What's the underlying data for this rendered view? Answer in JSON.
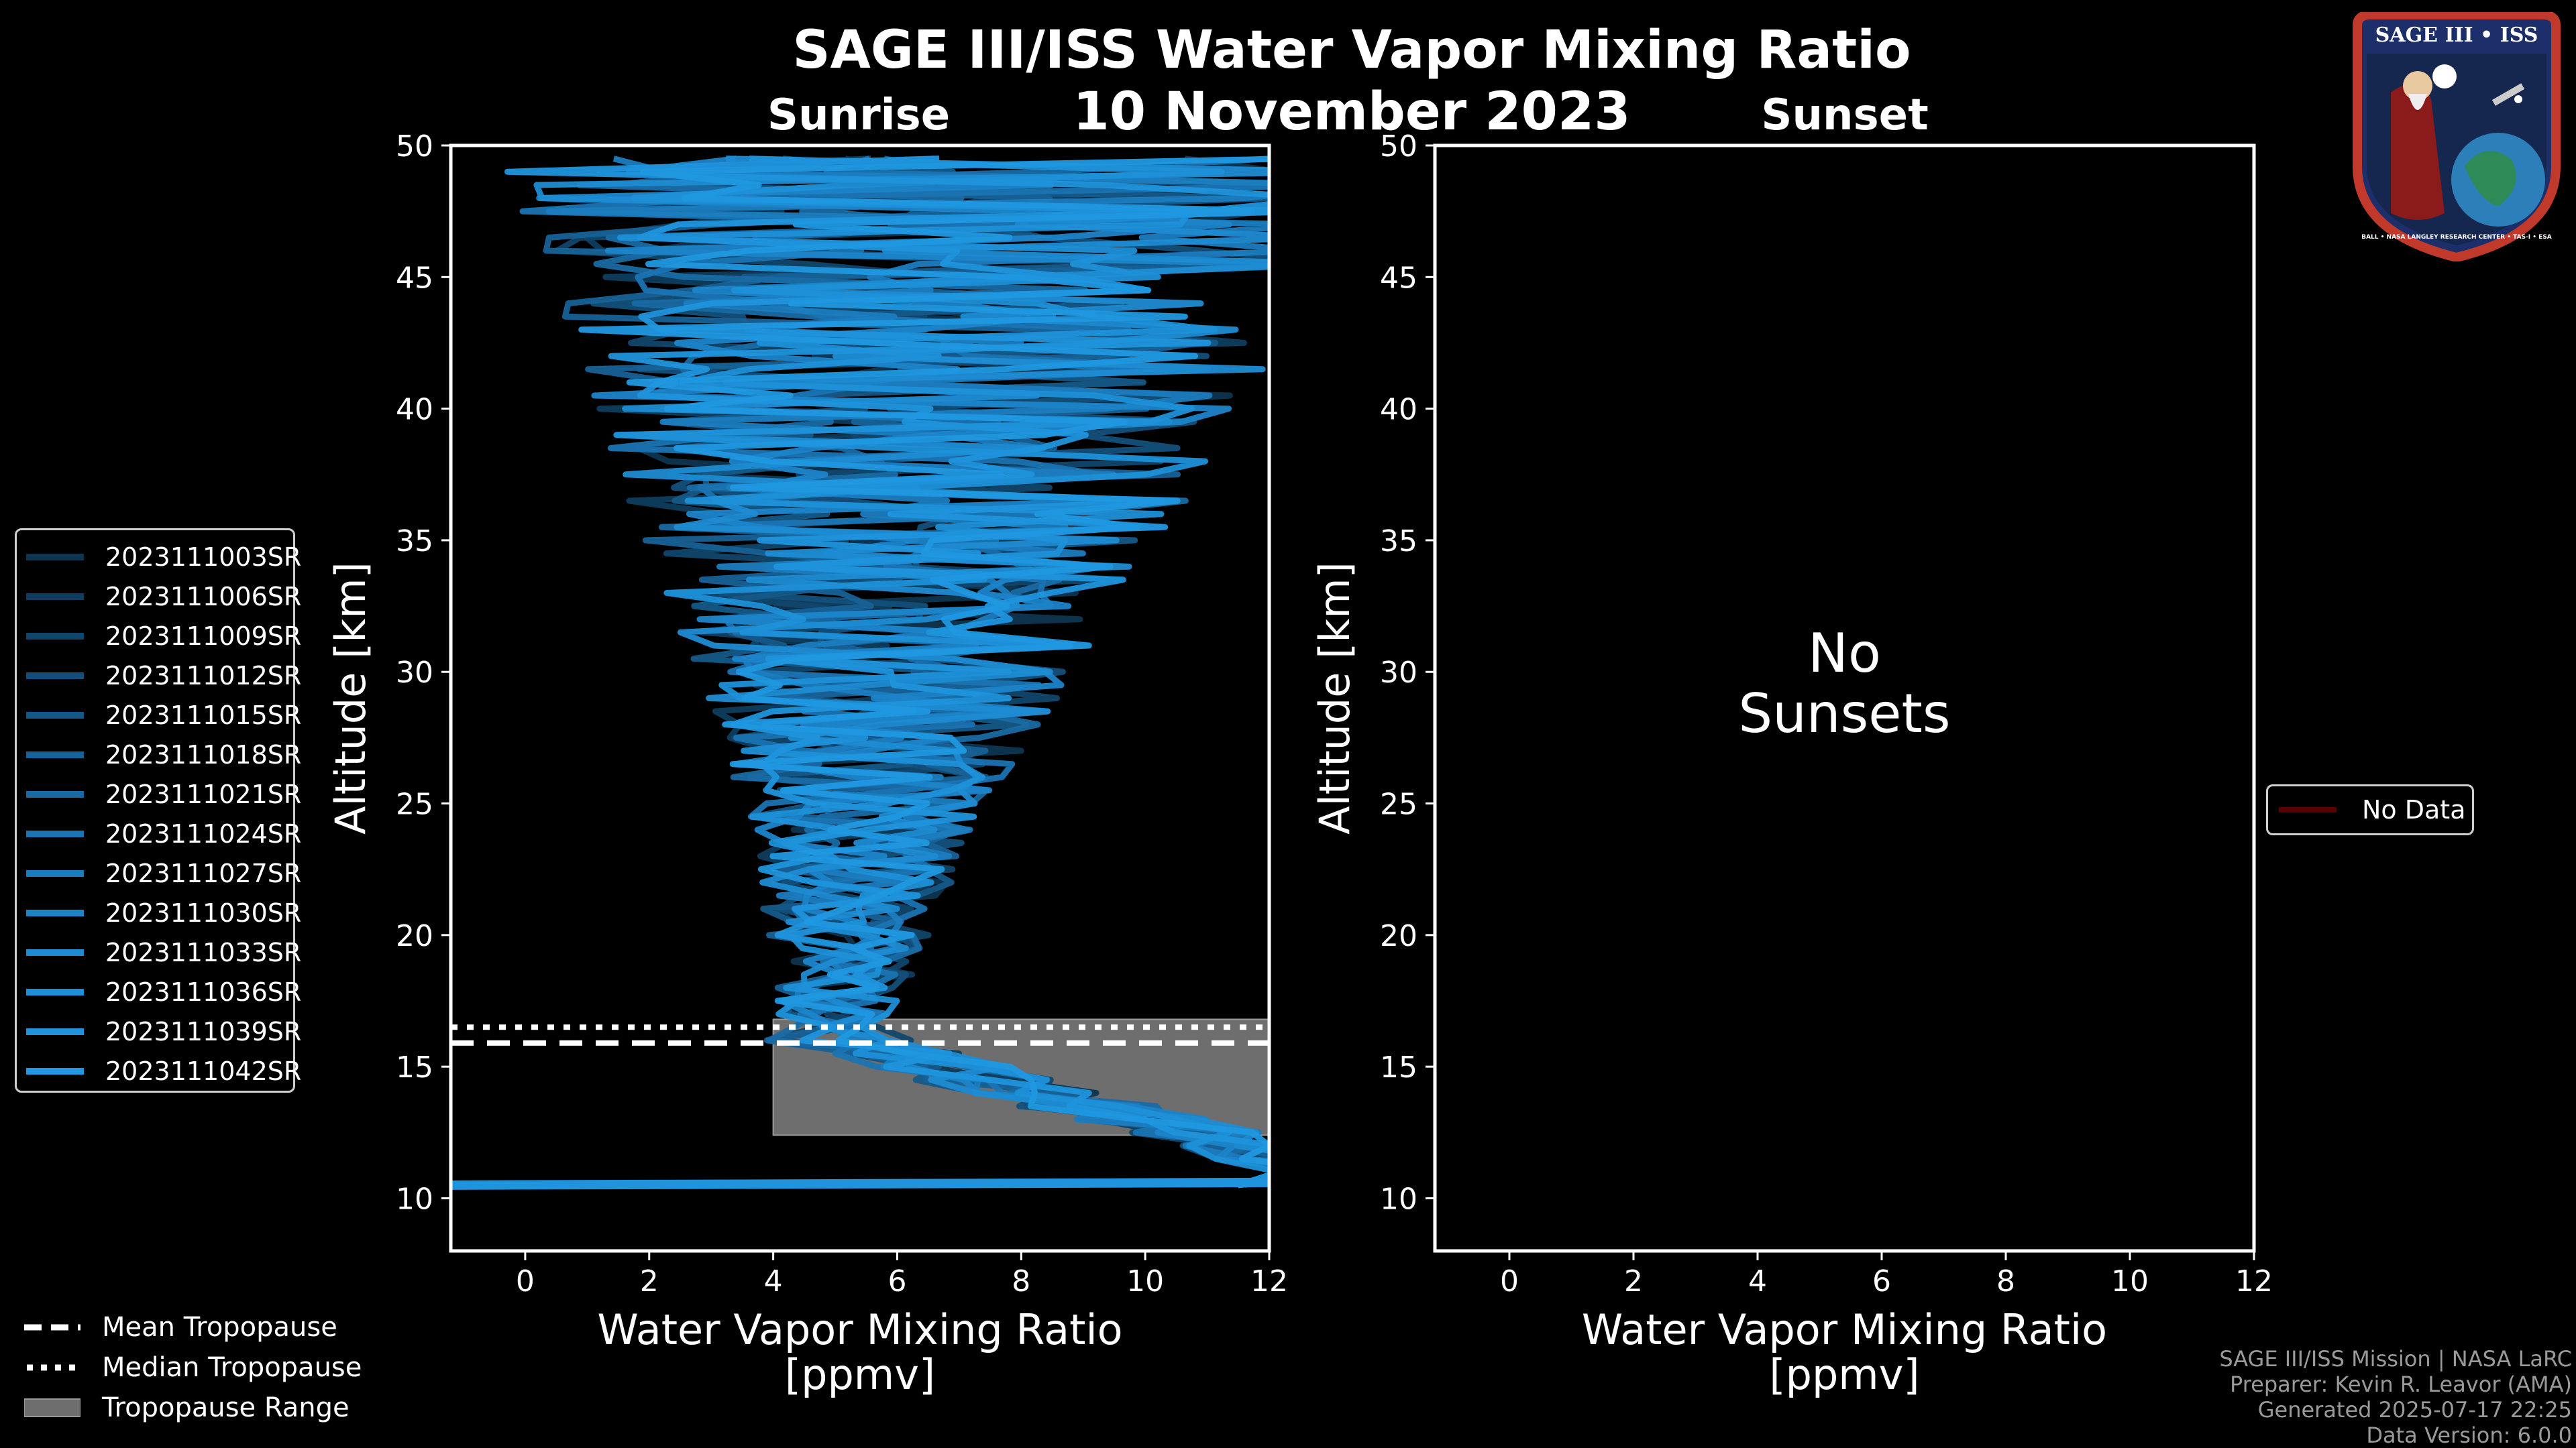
{
  "title": "SAGE III/ISS Water Vapor Mixing Ratio",
  "date": "10 November 2023",
  "sunrise_label": "Sunrise",
  "sunset_label": "Sunset",
  "chart_data": [
    {
      "type": "line",
      "panel": "Sunrise",
      "xlabel": "Water Vapor Mixing Ratio\n[ppmv]",
      "xlabel_line1": "Water Vapor Mixing Ratio",
      "xlabel_line2": "[ppmv]",
      "ylabel": "Altitude [km]",
      "xlim": [
        -1.2,
        12
      ],
      "ylim": [
        8,
        50
      ],
      "xticks": [
        0,
        2,
        4,
        6,
        8,
        10,
        12
      ],
      "yticks": [
        10,
        15,
        20,
        25,
        30,
        35,
        40,
        45,
        50
      ],
      "series_names": [
        "2023111003SR",
        "2023111006SR",
        "2023111009SR",
        "2023111012SR",
        "2023111015SR",
        "2023111018SR",
        "2023111021SR",
        "2023111024SR",
        "2023111027SR",
        "2023111030SR",
        "2023111033SR",
        "2023111036SR",
        "2023111039SR",
        "2023111042SR"
      ],
      "series_colors": [
        "#0d3550",
        "#0f3d5e",
        "#11466c",
        "#134f7a",
        "#155888",
        "#176196",
        "#196aa4",
        "#1a73b2",
        "#1b7cbf",
        "#1c84c9",
        "#1d8bd2",
        "#1e90d8",
        "#1f94dc",
        "#2098e0"
      ],
      "mean_tropopause_km": 15.9,
      "median_tropopause_km": 16.5,
      "tropopause_range_km": [
        12.4,
        16.8
      ]
    },
    {
      "type": "line",
      "panel": "Sunset",
      "xlabel_line1": "Water Vapor Mixing Ratio",
      "xlabel_line2": "[ppmv]",
      "ylabel": "Altitude [km]",
      "xlim": [
        -1.2,
        12
      ],
      "ylim": [
        8,
        50
      ],
      "xticks": [
        0,
        2,
        4,
        6,
        8,
        10,
        12
      ],
      "yticks": [
        10,
        15,
        20,
        25,
        30,
        35,
        40,
        45,
        50
      ],
      "annotation_line1": "No",
      "annotation_line2": "Sunsets",
      "series_names": [
        "No Data"
      ]
    }
  ],
  "legend_trop": [
    "Mean Tropopause",
    "Median Tropopause",
    "Tropopause Range"
  ],
  "footer": [
    "SAGE III/ISS Mission | NASA LaRC",
    "Preparer: Kevin R. Leavor (AMA)",
    "Generated 2025-07-17 22:25",
    "Data Version: 6.0.0"
  ],
  "logo": {
    "text_top": "SAGE III • ISS",
    "text_ring": "BALL • NASA LANGLEY RESEARCH CENTER • TAS-I • ESA"
  },
  "colors": {
    "background": "#000000",
    "trop_range": "#6e6e6e",
    "nodata": "#5a0000"
  }
}
